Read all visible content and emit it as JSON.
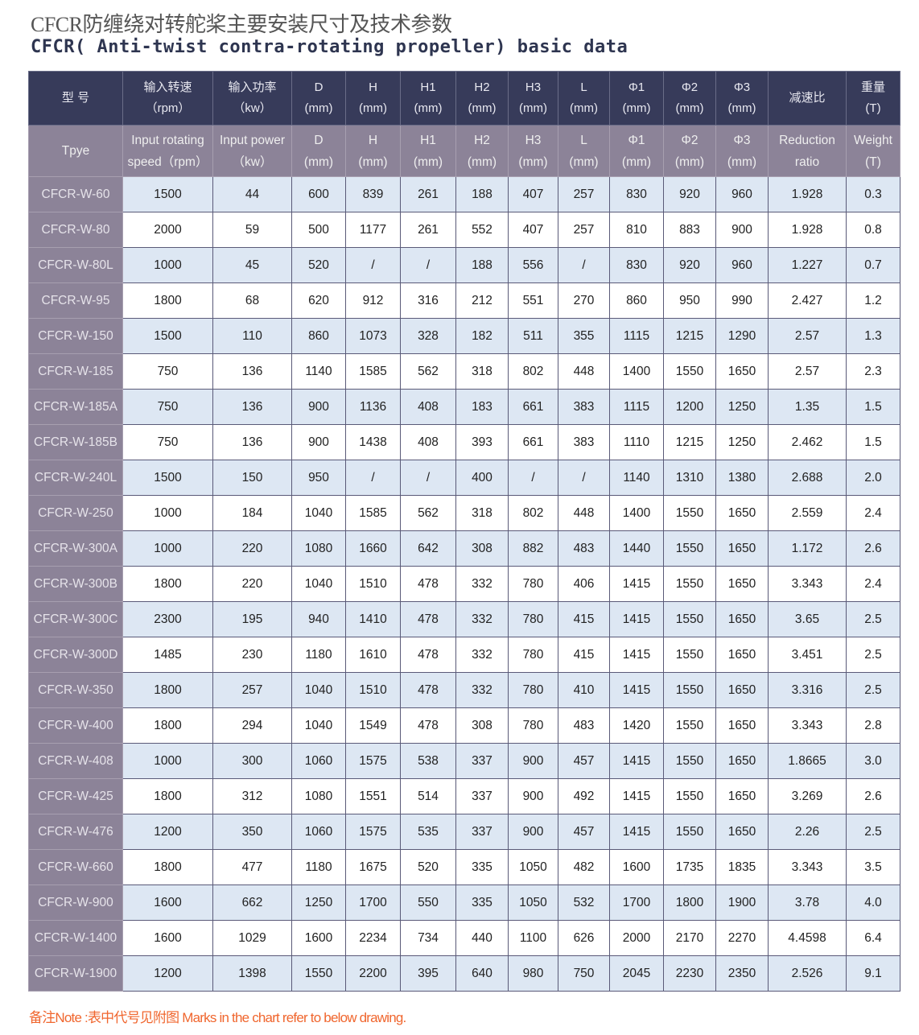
{
  "title_cn": "CFCR防缠绕对转舵桨主要安装尺寸及技术参数",
  "title_en": "CFCR( Anti-twist contra-rotating propeller) basic data",
  "header_cn": [
    [
      "型 号",
      ""
    ],
    [
      "输入转速",
      "（rpm）"
    ],
    [
      "输入功率",
      "（kw）"
    ],
    [
      "D",
      "(mm)"
    ],
    [
      "H",
      "(mm)"
    ],
    [
      "H1",
      "(mm)"
    ],
    [
      "H2",
      "(mm)"
    ],
    [
      "H3",
      "(mm)"
    ],
    [
      "L",
      "(mm)"
    ],
    [
      "Φ1",
      "(mm)"
    ],
    [
      "Φ2",
      "(mm)"
    ],
    [
      "Φ3",
      "(mm)"
    ],
    [
      "减速比",
      ""
    ],
    [
      "重量",
      "(T)"
    ]
  ],
  "header_en": [
    [
      "Tpye",
      ""
    ],
    [
      "Input rotating",
      "speed（rpm）"
    ],
    [
      "Input power",
      "（kw）"
    ],
    [
      "D",
      "(mm)"
    ],
    [
      "H",
      "(mm)"
    ],
    [
      "H1",
      "(mm)"
    ],
    [
      "H2",
      "(mm)"
    ],
    [
      "H3",
      "(mm)"
    ],
    [
      "L",
      "(mm)"
    ],
    [
      "Φ1",
      "(mm)"
    ],
    [
      "Φ2",
      "(mm)"
    ],
    [
      "Φ3",
      "(mm)"
    ],
    [
      "Reduction",
      "ratio"
    ],
    [
      "Weight",
      "(T)"
    ]
  ],
  "rows": [
    [
      "CFCR-W-60",
      "1500",
      "44",
      "600",
      "839",
      "261",
      "188",
      "407",
      "257",
      "830",
      "920",
      "960",
      "1.928",
      "0.3"
    ],
    [
      "CFCR-W-80",
      "2000",
      "59",
      "500",
      "1177",
      "261",
      "552",
      "407",
      "257",
      "810",
      "883",
      "900",
      "1.928",
      "0.8"
    ],
    [
      "CFCR-W-80L",
      "1000",
      "45",
      "520",
      "/",
      "/",
      "188",
      "556",
      "/",
      "830",
      "920",
      "960",
      "1.227",
      "0.7"
    ],
    [
      "CFCR-W-95",
      "1800",
      "68",
      "620",
      "912",
      "316",
      "212",
      "551",
      "270",
      "860",
      "950",
      "990",
      "2.427",
      "1.2"
    ],
    [
      "CFCR-W-150",
      "1500",
      "110",
      "860",
      "1073",
      "328",
      "182",
      "511",
      "355",
      "1115",
      "1215",
      "1290",
      "2.57",
      "1.3"
    ],
    [
      "CFCR-W-185",
      "750",
      "136",
      "1140",
      "1585",
      "562",
      "318",
      "802",
      "448",
      "1400",
      "1550",
      "1650",
      "2.57",
      "2.3"
    ],
    [
      "CFCR-W-185A",
      "750",
      "136",
      "900",
      "1136",
      "408",
      "183",
      "661",
      "383",
      "1115",
      "1200",
      "1250",
      "1.35",
      "1.5"
    ],
    [
      "CFCR-W-185B",
      "750",
      "136",
      "900",
      "1438",
      "408",
      "393",
      "661",
      "383",
      "1110",
      "1215",
      "1250",
      "2.462",
      "1.5"
    ],
    [
      "CFCR-W-240L",
      "1500",
      "150",
      "950",
      "/",
      "/",
      "400",
      "/",
      "/",
      "1140",
      "1310",
      "1380",
      "2.688",
      "2.0"
    ],
    [
      "CFCR-W-250",
      "1000",
      "184",
      "1040",
      "1585",
      "562",
      "318",
      "802",
      "448",
      "1400",
      "1550",
      "1650",
      "2.559",
      "2.4"
    ],
    [
      "CFCR-W-300A",
      "1000",
      "220",
      "1080",
      "1660",
      "642",
      "308",
      "882",
      "483",
      "1440",
      "1550",
      "1650",
      "1.172",
      "2.6"
    ],
    [
      "CFCR-W-300B",
      "1800",
      "220",
      "1040",
      "1510",
      "478",
      "332",
      "780",
      "406",
      "1415",
      "1550",
      "1650",
      "3.343",
      "2.4"
    ],
    [
      "CFCR-W-300C",
      "2300",
      "195",
      "940",
      "1410",
      "478",
      "332",
      "780",
      "415",
      "1415",
      "1550",
      "1650",
      "3.65",
      "2.5"
    ],
    [
      "CFCR-W-300D",
      "1485",
      "230",
      "1180",
      "1610",
      "478",
      "332",
      "780",
      "415",
      "1415",
      "1550",
      "1650",
      "3.451",
      "2.5"
    ],
    [
      "CFCR-W-350",
      "1800",
      "257",
      "1040",
      "1510",
      "478",
      "332",
      "780",
      "410",
      "1415",
      "1550",
      "1650",
      "3.316",
      "2.5"
    ],
    [
      "CFCR-W-400",
      "1800",
      "294",
      "1040",
      "1549",
      "478",
      "308",
      "780",
      "483",
      "1420",
      "1550",
      "1650",
      "3.343",
      "2.8"
    ],
    [
      "CFCR-W-408",
      "1000",
      "300",
      "1060",
      "1575",
      "538",
      "337",
      "900",
      "457",
      "1415",
      "1550",
      "1650",
      "1.8665",
      "3.0"
    ],
    [
      "CFCR-W-425",
      "1800",
      "312",
      "1080",
      "1551",
      "514",
      "337",
      "900",
      "492",
      "1415",
      "1550",
      "1650",
      "3.269",
      "2.6"
    ],
    [
      "CFCR-W-476",
      "1200",
      "350",
      "1060",
      "1575",
      "535",
      "337",
      "900",
      "457",
      "1415",
      "1550",
      "1650",
      "2.26",
      "2.5"
    ],
    [
      "CFCR-W-660",
      "1800",
      "477",
      "1180",
      "1675",
      "520",
      "335",
      "1050",
      "482",
      "1600",
      "1735",
      "1835",
      "3.343",
      "3.5"
    ],
    [
      "CFCR-W-900",
      "1600",
      "662",
      "1250",
      "1700",
      "550",
      "335",
      "1050",
      "532",
      "1700",
      "1800",
      "1900",
      "3.78",
      "4.0"
    ],
    [
      "CFCR-W-1400",
      "1600",
      "1029",
      "1600",
      "2234",
      "734",
      "440",
      "1100",
      "626",
      "2000",
      "2170",
      "2270",
      "4.4598",
      "6.4"
    ],
    [
      "CFCR-W-1900",
      "1200",
      "1398",
      "1550",
      "2200",
      "395",
      "640",
      "980",
      "750",
      "2045",
      "2230",
      "2350",
      "2.526",
      "9.1"
    ]
  ],
  "note": "备注Note :表中代号见附图 Marks in the chart refer to below drawing."
}
